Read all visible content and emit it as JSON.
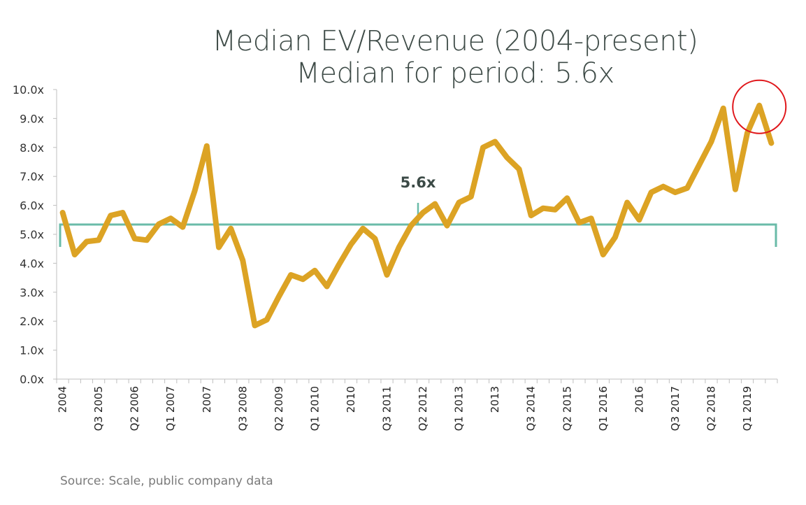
{
  "title_line1": "Median EV/Revenue (2004-present)",
  "title_line2": "Median for period: 5.6x",
  "source": "Source: Scale, public company data",
  "colors": {
    "series": "#DCA324",
    "median_bracket": "#6ABBA8",
    "highlight_circle": "#E0161A",
    "axis": "#BFBFBF",
    "title": "#3E4B47"
  },
  "chart_data": {
    "type": "line",
    "title": "Median EV/Revenue (2004-present)",
    "subtitle": "Median for period: 5.6x",
    "xlabel": "",
    "ylabel": "",
    "ylim": [
      0,
      10
    ],
    "yticks": [
      "0.0x",
      "1.0x",
      "2.0x",
      "3.0x",
      "4.0x",
      "5.0x",
      "6.0x",
      "7.0x",
      "8.0x",
      "9.0x",
      "10.0x"
    ],
    "grid": false,
    "legend": "none",
    "x_tick_labels": [
      "2004",
      "Q3 2005",
      "Q2 2006",
      "Q1 2007",
      "2007",
      "Q3 2008",
      "Q2 2009",
      "Q1 2010",
      "2010",
      "Q3 2011",
      "Q2 2012",
      "Q1 2013",
      "2013",
      "Q3 2014",
      "Q2 2015",
      "Q1 2016",
      "2016",
      "Q3 2017",
      "Q2 2018",
      "Q1 2019"
    ],
    "x_tick_label_every": 3,
    "series": [
      {
        "name": "Median EV/Revenue",
        "values": [
          5.75,
          4.3,
          4.75,
          4.8,
          5.65,
          5.75,
          4.85,
          4.8,
          5.35,
          5.55,
          5.25,
          6.5,
          8.05,
          4.55,
          5.2,
          4.1,
          1.85,
          2.05,
          2.85,
          3.6,
          3.45,
          3.75,
          3.2,
          3.95,
          4.65,
          5.2,
          4.85,
          3.6,
          4.55,
          5.3,
          5.75,
          6.05,
          5.3,
          6.1,
          6.3,
          8.0,
          8.2,
          7.65,
          7.25,
          5.65,
          5.9,
          5.85,
          6.25,
          5.4,
          5.55,
          4.3,
          4.9,
          6.1,
          5.5,
          6.45,
          6.65,
          6.45,
          6.6,
          7.4,
          8.2,
          9.35,
          6.55,
          8.5,
          9.45,
          8.15
        ]
      }
    ],
    "median": {
      "value": 5.6,
      "label": "5.6x"
    },
    "annotations": [
      {
        "type": "median-bracket",
        "label": "5.6x"
      },
      {
        "type": "highlight-circle",
        "target_index": 58
      }
    ]
  }
}
